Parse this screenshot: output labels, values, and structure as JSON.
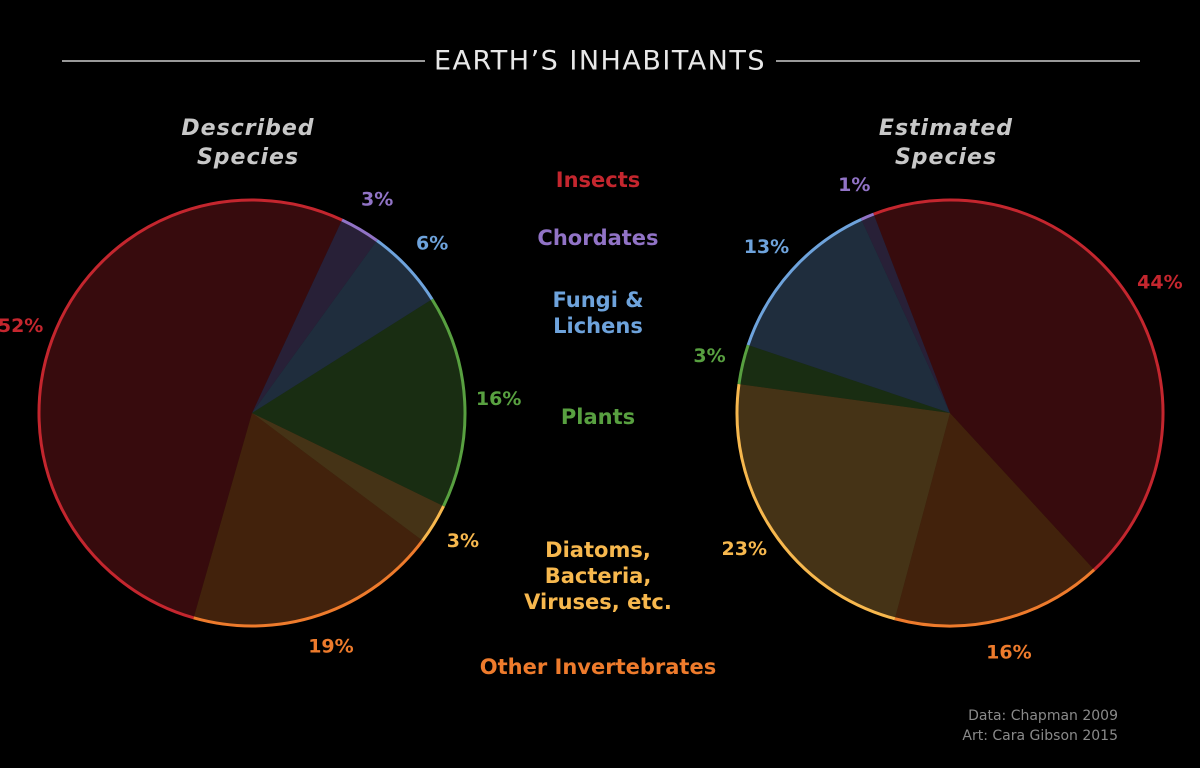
{
  "chart_data": {
    "type": "pie",
    "title": "EARTH’S INHABITANTS",
    "categories": [
      "Insects",
      "Chordates",
      "Fungi & Lichens",
      "Plants",
      "Diatoms, Bacteria, Viruses, etc.",
      "Other Invertebrates"
    ],
    "colors": [
      "#c4262e",
      "#9173c6",
      "#6ea3dc",
      "#58a040",
      "#f7b84e",
      "#ee7b2c"
    ],
    "series": [
      {
        "name": "Described Species",
        "values": [
          52,
          3,
          6,
          16,
          3,
          19
        ],
        "value_labels": [
          "52%",
          "3%",
          "6%",
          "16%",
          "3%",
          "19%"
        ]
      },
      {
        "name": "Estimated Species",
        "values": [
          44,
          1,
          13,
          3,
          23,
          16
        ],
        "value_labels": [
          "44%",
          "1%",
          "13%",
          "3%",
          "23%",
          "16%"
        ]
      }
    ],
    "annotations": [
      "Data: Chapman 2009",
      "Art: Cara Gibson 2015"
    ]
  }
}
